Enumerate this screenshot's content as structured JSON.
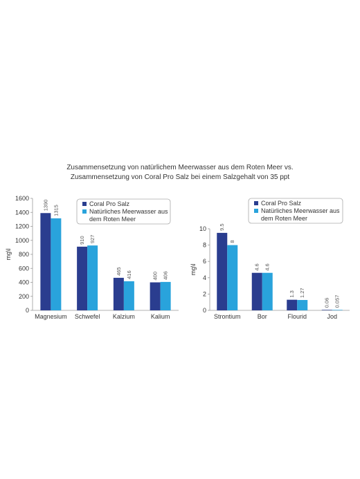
{
  "title": {
    "line1": "Zusammensetzung von natürlichem Meerwasser aus dem Roten Meer vs.",
    "line2": "Zusammensetzung von Coral Pro Salz bei einem Salzgehalt von 35 ppt"
  },
  "colors": {
    "coral_pro": "#2a3d8f",
    "natural": "#29a3dc",
    "axis": "#999999",
    "legend_border": "#aaaaaa"
  },
  "chart_data": [
    {
      "type": "bar",
      "ylabel": "mg\\l",
      "ylim": [
        0,
        1600
      ],
      "yticks": [
        "0",
        "200",
        "400",
        "600",
        "800",
        "1000",
        "1200",
        "1400",
        "1600"
      ],
      "categories": [
        "Magnesium",
        "Schwefel",
        "Kalzium",
        "Kalium"
      ],
      "series": [
        {
          "name": "Coral Pro Salz",
          "values": [
            1390,
            910,
            465,
            400
          ],
          "labels": [
            "1390",
            "910",
            "465",
            "400"
          ]
        },
        {
          "name": "Natürliches Meerwasser aus dem Roten Meer",
          "values": [
            1315,
            927,
            416,
            406
          ],
          "labels": [
            "1315",
            "927",
            "416",
            "406"
          ]
        }
      ],
      "legend": {
        "position": "top-right",
        "items": [
          "Coral Pro Salz",
          "Natürliches Meerwasser aus",
          "dem Roten Meer"
        ]
      },
      "grid": false
    },
    {
      "type": "bar",
      "ylabel": "mg\\l",
      "ylim": [
        0,
        10
      ],
      "yticks": [
        "0",
        "2",
        "4",
        "6",
        "8",
        "10"
      ],
      "categories": [
        "Strontium",
        "Bor",
        "Flourid",
        "Jod"
      ],
      "series": [
        {
          "name": "Coral Pro Salz",
          "values": [
            9.5,
            4.6,
            1.3,
            0.06
          ],
          "labels": [
            "9.5",
            "4.6",
            "1.3",
            "0.06"
          ]
        },
        {
          "name": "Natürliches Meerwasser aus dem Roten Meer",
          "values": [
            8,
            4.6,
            1.27,
            0.057
          ],
          "labels": [
            "8",
            "4.6",
            "1.27",
            "0.057"
          ]
        }
      ],
      "legend": {
        "position": "top-right",
        "items": [
          "Coral Pro Salz",
          "Natürliches Meerwasser aus",
          "dem Roten Meer"
        ]
      },
      "grid": false
    }
  ]
}
